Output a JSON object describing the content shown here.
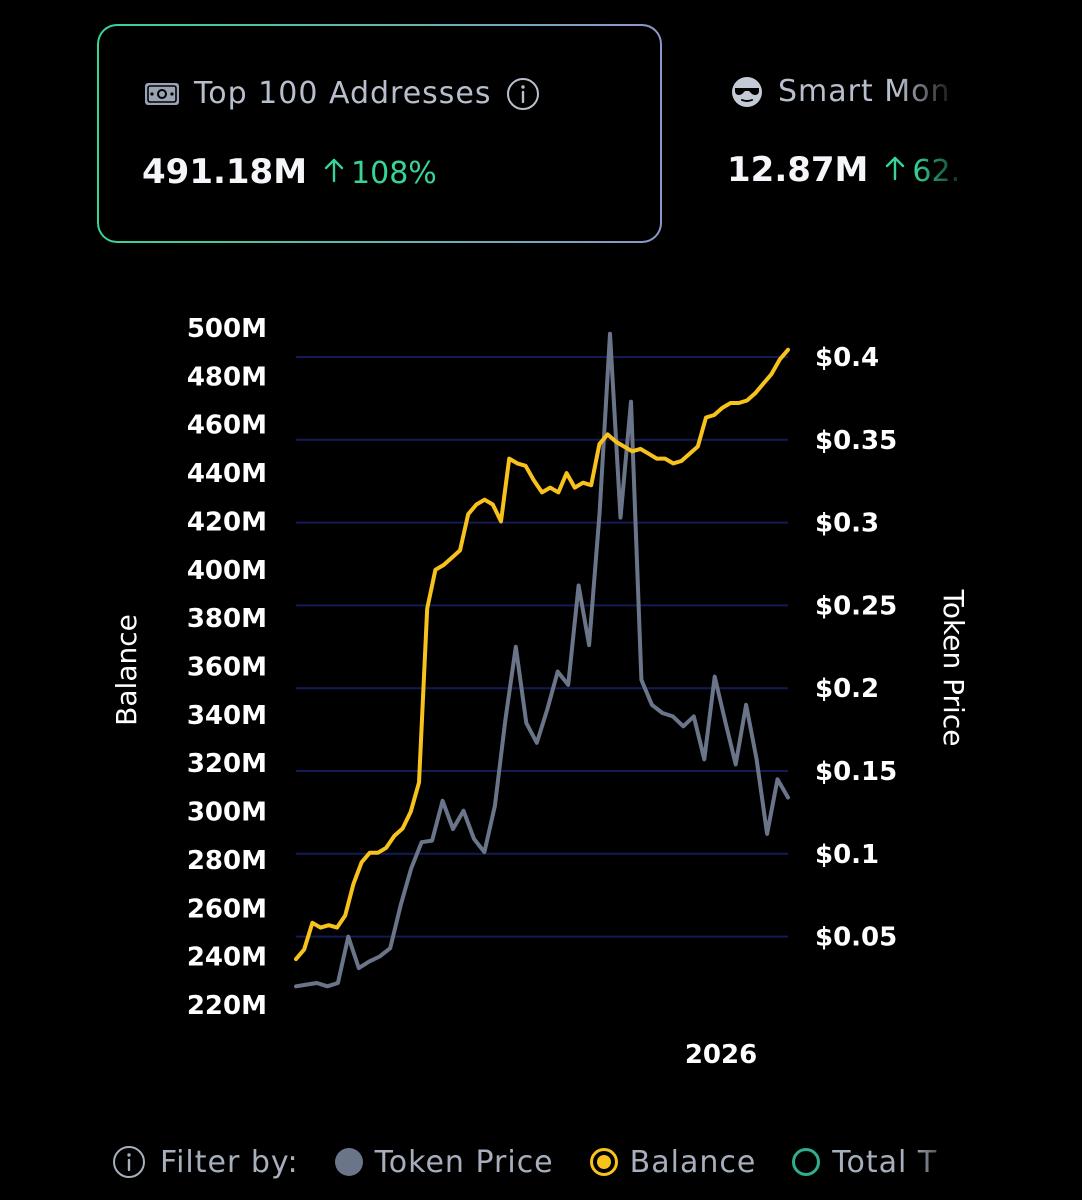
{
  "cards": [
    {
      "title": "Top 100 Addresses",
      "icon": "cash-icon",
      "value": "491.18M",
      "change": "108%",
      "change_direction": "up",
      "selected": true
    },
    {
      "title": "Smart Mon",
      "icon": "sunglasses-icon",
      "value": "12.87M",
      "change": "62.",
      "change_direction": "up",
      "selected": false
    }
  ],
  "chart_data": {
    "type": "line",
    "title": "",
    "x_tick_labels": [
      "2026"
    ],
    "left_axis": {
      "label": "Balance",
      "ticks": [
        "500M",
        "480M",
        "460M",
        "440M",
        "420M",
        "400M",
        "380M",
        "360M",
        "340M",
        "320M",
        "300M",
        "280M",
        "260M",
        "240M",
        "220M"
      ],
      "range": [
        220,
        500
      ],
      "unit": "M"
    },
    "right_axis": {
      "label": "Token Price",
      "ticks": [
        "$0.4",
        "$0.35",
        "$0.3",
        "$0.25",
        "$0.2",
        "$0.15",
        "$0.1",
        "$0.05"
      ],
      "range": [
        0.0,
        0.4
      ]
    },
    "grid": "horizontal",
    "series": [
      {
        "name": "Balance",
        "axis": "left",
        "color": "#f8c21d",
        "values": [
          239,
          243,
          254,
          252,
          253,
          252,
          257,
          270,
          279,
          283,
          283,
          285,
          290,
          293,
          300,
          312,
          384,
          400,
          402,
          405,
          408,
          423,
          427,
          429,
          427,
          420,
          446,
          444,
          443,
          437,
          432,
          434,
          432,
          440,
          434,
          436,
          435,
          452,
          456,
          453,
          451,
          449,
          450,
          448,
          446,
          446,
          444,
          445,
          448,
          451,
          463,
          464,
          467,
          469,
          469,
          470,
          473,
          477,
          481,
          487,
          491
        ]
      },
      {
        "name": "Token Price",
        "axis": "right",
        "color": "#6b7589",
        "values": [
          0.02,
          0.021,
          0.022,
          0.02,
          0.022,
          0.05,
          0.031,
          0.035,
          0.038,
          0.043,
          0.069,
          0.091,
          0.107,
          0.108,
          0.132,
          0.115,
          0.126,
          0.109,
          0.101,
          0.129,
          0.181,
          0.225,
          0.179,
          0.167,
          0.187,
          0.21,
          0.202,
          0.262,
          0.226,
          0.306,
          0.414,
          0.303,
          0.373,
          0.205,
          0.19,
          0.185,
          0.183,
          0.177,
          0.183,
          0.157,
          0.207,
          0.18,
          0.154,
          0.19,
          0.157,
          0.112,
          0.145,
          0.134
        ]
      }
    ]
  },
  "legend": {
    "filter_label": "Filter by:",
    "items": [
      {
        "label": "Token Price",
        "color": "#6b7589"
      },
      {
        "label": "Balance",
        "color": "#f8c21d"
      },
      {
        "label": "Total T",
        "color": "#2fae8f"
      }
    ]
  }
}
